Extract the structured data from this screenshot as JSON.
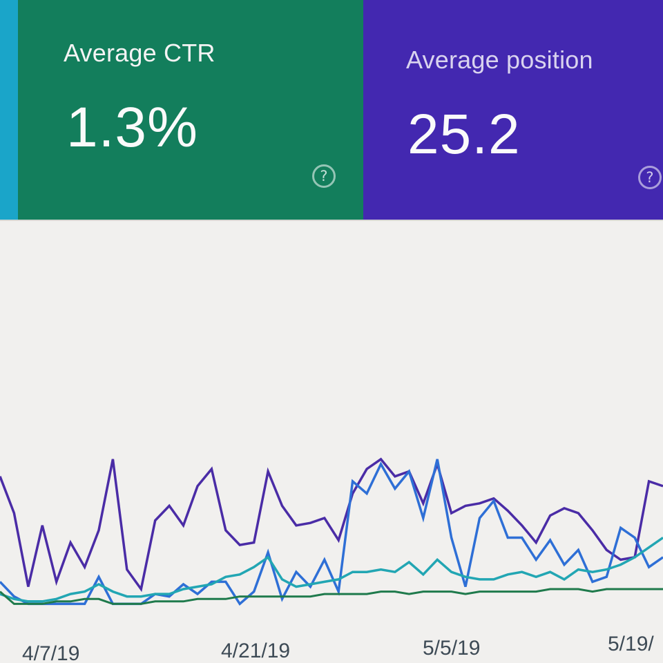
{
  "cards": [
    {
      "label": "Average CTR",
      "value": "1.3%",
      "color": "#137e5c"
    },
    {
      "label": "Average position",
      "value": "25.2",
      "color": "#4328b0"
    }
  ],
  "help_glyph": "?",
  "chart_data": {
    "type": "line",
    "x_ticks": [
      "4/7/19",
      "4/21/19",
      "5/5/19",
      "5/19/"
    ],
    "series": [
      {
        "color": "#4a2ca6",
        "values": [
          0.55,
          0.4,
          0.1,
          0.35,
          0.12,
          0.28,
          0.18,
          0.33,
          0.62,
          0.17,
          0.09,
          0.37,
          0.43,
          0.35,
          0.51,
          0.58,
          0.33,
          0.27,
          0.28,
          0.57,
          0.43,
          0.35,
          0.36,
          0.38,
          0.29,
          0.48,
          0.58,
          0.62,
          0.55,
          0.57,
          0.44,
          0.6,
          0.4,
          0.43,
          0.44,
          0.46,
          0.41,
          0.35,
          0.28,
          0.39,
          0.42,
          0.4,
          0.33,
          0.25,
          0.21,
          0.22,
          0.53,
          0.51
        ]
      },
      {
        "color": "#2e6fd6",
        "values": [
          0.12,
          0.06,
          0.03,
          0.03,
          0.03,
          0.03,
          0.03,
          0.14,
          0.03,
          0.03,
          0.03,
          0.07,
          0.06,
          0.11,
          0.07,
          0.12,
          0.12,
          0.03,
          0.08,
          0.24,
          0.05,
          0.16,
          0.1,
          0.21,
          0.08,
          0.53,
          0.48,
          0.6,
          0.5,
          0.57,
          0.38,
          0.62,
          0.3,
          0.1,
          0.38,
          0.45,
          0.3,
          0.3,
          0.21,
          0.29,
          0.19,
          0.25,
          0.12,
          0.14,
          0.34,
          0.3,
          0.18,
          0.22
        ]
      },
      {
        "color": "#22a6b3",
        "values": [
          0.07,
          0.05,
          0.04,
          0.04,
          0.05,
          0.07,
          0.08,
          0.11,
          0.08,
          0.06,
          0.06,
          0.07,
          0.07,
          0.09,
          0.1,
          0.11,
          0.14,
          0.15,
          0.18,
          0.22,
          0.13,
          0.1,
          0.11,
          0.12,
          0.13,
          0.16,
          0.16,
          0.17,
          0.16,
          0.2,
          0.15,
          0.21,
          0.16,
          0.14,
          0.13,
          0.13,
          0.15,
          0.16,
          0.14,
          0.16,
          0.13,
          0.17,
          0.16,
          0.17,
          0.19,
          0.22,
          0.26,
          0.3
        ]
      },
      {
        "color": "#1f7a4c",
        "values": [
          0.08,
          0.03,
          0.03,
          0.03,
          0.04,
          0.04,
          0.05,
          0.05,
          0.03,
          0.03,
          0.03,
          0.04,
          0.04,
          0.04,
          0.05,
          0.05,
          0.05,
          0.06,
          0.06,
          0.06,
          0.06,
          0.06,
          0.06,
          0.07,
          0.07,
          0.07,
          0.07,
          0.08,
          0.08,
          0.07,
          0.08,
          0.08,
          0.08,
          0.07,
          0.08,
          0.08,
          0.08,
          0.08,
          0.08,
          0.09,
          0.09,
          0.09,
          0.08,
          0.09,
          0.09,
          0.09,
          0.09,
          0.09
        ]
      }
    ],
    "ylim": [
      0,
      1
    ]
  }
}
